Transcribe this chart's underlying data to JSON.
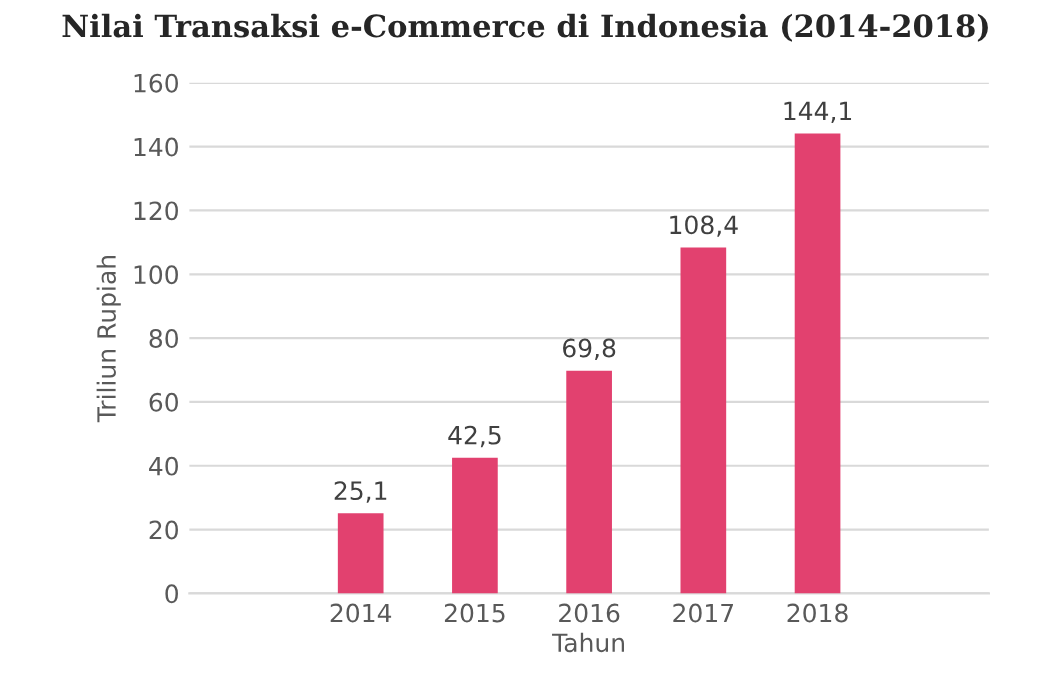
{
  "chart_data": {
    "type": "bar",
    "title": "Nilai Transaksi e-Commerce di Indonesia (2014-2018)",
    "xlabel": "Tahun",
    "ylabel": "Triliun Rupiah",
    "categories": [
      "2014",
      "2015",
      "2016",
      "2017",
      "2018"
    ],
    "values": [
      25.1,
      42.5,
      69.8,
      108.4,
      144.1
    ],
    "value_labels": [
      "25,1",
      "42,5",
      "69,8",
      "108,4",
      "144,1"
    ],
    "color": "#e2416f",
    "ylim": [
      0,
      160
    ],
    "yticks": [
      0,
      20,
      40,
      60,
      80,
      100,
      120,
      140,
      160
    ],
    "grid": "y"
  }
}
